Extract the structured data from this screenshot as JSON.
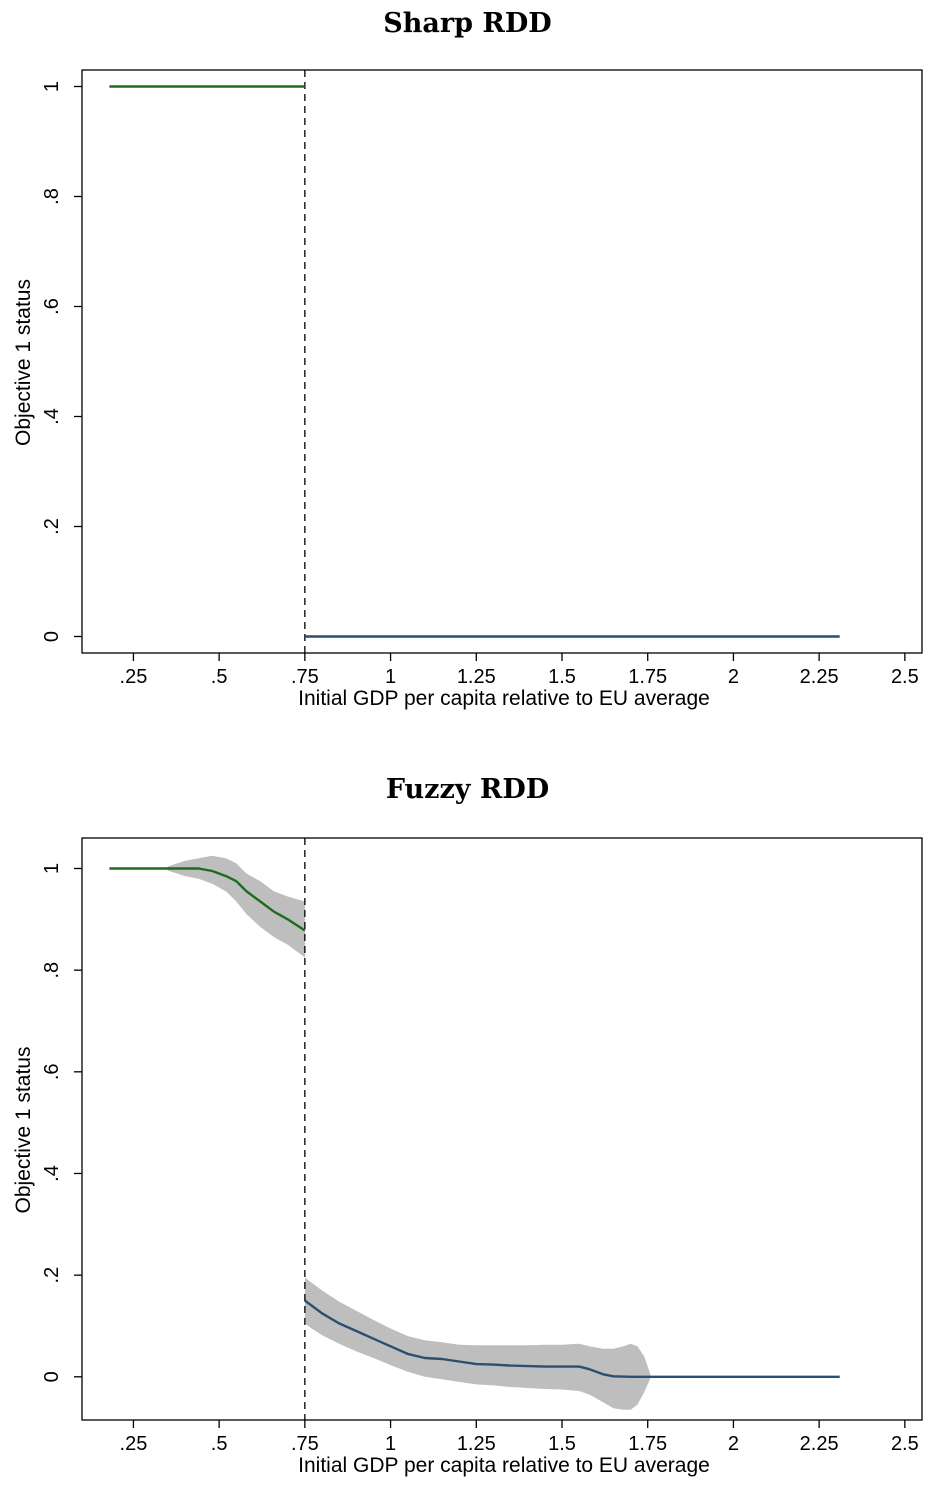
{
  "chart_data": [
    {
      "type": "line",
      "title": "Sharp RDD",
      "xlabel": "Initial GDP per capita relative to EU average",
      "ylabel": "Objective 1 status",
      "xlim": [
        0.1,
        2.55
      ],
      "ylim": [
        -0.03,
        1.03
      ],
      "x_ticks": [
        0.25,
        0.5,
        0.75,
        1,
        1.25,
        1.5,
        1.75,
        2,
        2.25,
        2.5
      ],
      "x_tick_labels": [
        ".25",
        ".5",
        ".75",
        "1",
        "1.25",
        "1.5",
        "1.75",
        "2",
        "2.25",
        "2.5"
      ],
      "y_ticks": [
        0,
        0.2,
        0.4,
        0.6,
        0.8,
        1
      ],
      "y_tick_labels": [
        "0",
        ".2",
        ".4",
        ".6",
        ".8",
        "1"
      ],
      "cutoff": 0.75,
      "grid": false,
      "series": [
        {
          "color": "#1e6b1e",
          "points": [
            [
              0.18,
              1
            ],
            [
              0.75,
              1
            ]
          ]
        },
        {
          "color": "#2b4f70",
          "points": [
            [
              0.75,
              0
            ],
            [
              2.31,
              0
            ]
          ]
        }
      ]
    },
    {
      "type": "line",
      "title": "Fuzzy RDD",
      "xlabel": "Initial GDP per capita relative to EU average",
      "ylabel": "Objective 1 status",
      "xlim": [
        0.1,
        2.55
      ],
      "ylim": [
        -0.085,
        1.06
      ],
      "x_ticks": [
        0.25,
        0.5,
        0.75,
        1,
        1.25,
        1.5,
        1.75,
        2,
        2.25,
        2.5
      ],
      "x_tick_labels": [
        ".25",
        ".5",
        ".75",
        "1",
        "1.25",
        "1.5",
        "1.75",
        "2",
        "2.25",
        "2.5"
      ],
      "y_ticks": [
        0,
        0.2,
        0.4,
        0.6,
        0.8,
        1
      ],
      "y_tick_labels": [
        "0",
        ".2",
        ".4",
        ".6",
        ".8",
        "1"
      ],
      "cutoff": 0.75,
      "grid": false,
      "series": [
        {
          "color": "#1e6b1e",
          "points": [
            [
              0.18,
              1
            ],
            [
              0.35,
              1
            ],
            [
              0.44,
              1
            ],
            [
              0.48,
              0.995
            ],
            [
              0.52,
              0.985
            ],
            [
              0.55,
              0.975
            ],
            [
              0.58,
              0.955
            ],
            [
              0.62,
              0.935
            ],
            [
              0.66,
              0.915
            ],
            [
              0.7,
              0.9
            ],
            [
              0.75,
              0.878
            ]
          ],
          "band": {
            "x": [
              0.35,
              0.4,
              0.44,
              0.48,
              0.52,
              0.55,
              0.58,
              0.62,
              0.66,
              0.7,
              0.75
            ],
            "lower": [
              0.996,
              0.985,
              0.98,
              0.97,
              0.955,
              0.935,
              0.91,
              0.885,
              0.865,
              0.85,
              0.825
            ],
            "upper": [
              1.004,
              1.015,
              1.02,
              1.025,
              1.02,
              1.01,
              0.99,
              0.975,
              0.955,
              0.945,
              0.935
            ]
          }
        },
        {
          "color": "#2b4f70",
          "points": [
            [
              0.75,
              0.15
            ],
            [
              0.77,
              0.14
            ],
            [
              0.8,
              0.125
            ],
            [
              0.85,
              0.105
            ],
            [
              0.9,
              0.09
            ],
            [
              0.95,
              0.075
            ],
            [
              1.0,
              0.06
            ],
            [
              1.05,
              0.045
            ],
            [
              1.1,
              0.037
            ],
            [
              1.15,
              0.035
            ],
            [
              1.2,
              0.03
            ],
            [
              1.25,
              0.025
            ],
            [
              1.3,
              0.024
            ],
            [
              1.35,
              0.022
            ],
            [
              1.4,
              0.021
            ],
            [
              1.45,
              0.02
            ],
            [
              1.5,
              0.02
            ],
            [
              1.55,
              0.02
            ],
            [
              1.58,
              0.015
            ],
            [
              1.62,
              0.005
            ],
            [
              1.65,
              0.001
            ],
            [
              1.7,
              0
            ],
            [
              1.75,
              0
            ],
            [
              2.31,
              0
            ]
          ],
          "band": {
            "x": [
              0.75,
              0.77,
              0.8,
              0.85,
              0.9,
              0.95,
              1.0,
              1.05,
              1.1,
              1.15,
              1.2,
              1.25,
              1.3,
              1.35,
              1.4,
              1.45,
              1.5,
              1.55,
              1.58,
              1.62,
              1.65,
              1.68,
              1.7,
              1.72,
              1.74,
              1.76
            ],
            "lower": [
              0.105,
              0.095,
              0.082,
              0.065,
              0.05,
              0.037,
              0.023,
              0.01,
              0.0,
              -0.005,
              -0.01,
              -0.015,
              -0.017,
              -0.02,
              -0.022,
              -0.024,
              -0.025,
              -0.028,
              -0.035,
              -0.05,
              -0.062,
              -0.065,
              -0.065,
              -0.055,
              -0.03,
              0.0
            ],
            "upper": [
              0.195,
              0.185,
              0.17,
              0.148,
              0.13,
              0.112,
              0.095,
              0.08,
              0.072,
              0.068,
              0.063,
              0.062,
              0.062,
              0.062,
              0.062,
              0.063,
              0.063,
              0.065,
              0.06,
              0.055,
              0.055,
              0.06,
              0.065,
              0.06,
              0.04,
              0.0
            ]
          }
        }
      ]
    }
  ]
}
